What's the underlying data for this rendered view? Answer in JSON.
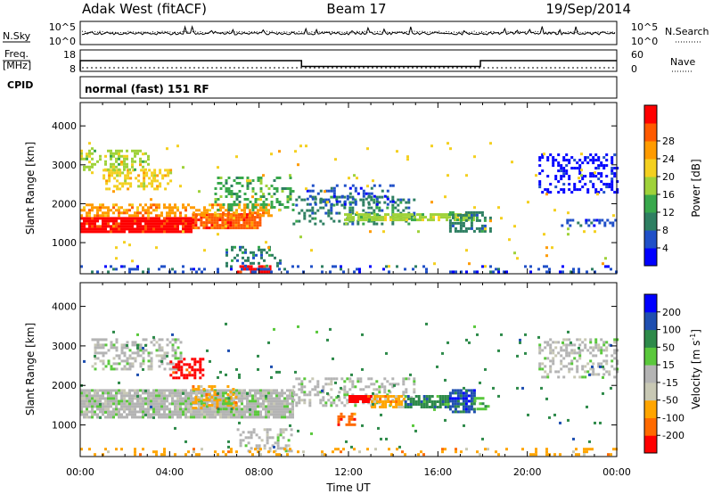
{
  "header": {
    "station": "Adak West (fitACF)",
    "beam": "Beam 17",
    "date": "19/Sep/2014"
  },
  "labels": {
    "nsky": "N.Sky",
    "nsearch": "N.Search",
    "freq_top": "Freq.",
    "freq_unit": "[MHz]",
    "cpid": "CPID",
    "nave": "Nave",
    "cpid_value": "normal (fast) 151 RF"
  },
  "colors": {
    "power": [
      "#0000ff",
      "#2050c8",
      "#2e7f62",
      "#38a84c",
      "#9fd23a",
      "#f4d020",
      "#ff9b00",
      "#ff5a00",
      "#ff0000"
    ],
    "velocity": [
      "#ff0000",
      "#ff6a00",
      "#ffa500",
      "#c8c8b4",
      "#b4b4b4",
      "#5ac83c",
      "#2e8a4a",
      "#1f4fb0",
      "#0000ff"
    ]
  },
  "chart_data": [
    {
      "type": "line",
      "name": "noise",
      "ylabel_left": "N.Sky",
      "ylabel_right": "N.Search",
      "left_ticks": [
        "10^5",
        "10^0"
      ],
      "right_ticks": [
        "10^5",
        "10^0"
      ],
      "xlim": [
        0,
        24
      ]
    },
    {
      "type": "line",
      "name": "frequency",
      "left_ticks": [
        "18",
        "8"
      ],
      "right_ticks": [
        "60",
        "0"
      ],
      "ylim_left": [
        8,
        18
      ],
      "ylim_right": [
        0,
        60
      ],
      "freq_steps": [
        {
          "x0": 0,
          "x1": 9.9,
          "y": 13
        },
        {
          "x0": 9.9,
          "x1": 17.9,
          "y": 10.3
        },
        {
          "x0": 17.9,
          "x1": 24,
          "y": 13
        }
      ],
      "nave_level": 10,
      "xlim": [
        0,
        24
      ]
    },
    {
      "type": "heatmap",
      "name": "power",
      "ylabel": "Slant Range [km]",
      "yticks": [
        "1000",
        "2000",
        "3000",
        "4000"
      ],
      "ylim": [
        200,
        4600
      ],
      "xlim": [
        0,
        24
      ],
      "colorbar_label": "Power [dB]",
      "colorbar_ticks": [
        "4",
        "8",
        "12",
        "16",
        "20",
        "24",
        "28"
      ],
      "regions": [
        {
          "x0": 0.0,
          "x1": 5.0,
          "y0": 1250,
          "y1": 1650,
          "c": 8,
          "d": 0.95
        },
        {
          "x0": 5.0,
          "x1": 8.0,
          "y0": 1400,
          "y1": 1750,
          "c": 7,
          "d": 0.9
        },
        {
          "x0": 0.0,
          "x1": 8.5,
          "y0": 1700,
          "y1": 2000,
          "c": 6,
          "d": 0.55
        },
        {
          "x0": 1.0,
          "x1": 4.0,
          "y0": 2400,
          "y1": 2900,
          "c": 5,
          "d": 0.5
        },
        {
          "x0": 0.0,
          "x1": 3.0,
          "y0": 2900,
          "y1": 3400,
          "c": 4,
          "d": 0.35
        },
        {
          "x0": 6.0,
          "x1": 9.5,
          "y0": 1800,
          "y1": 2700,
          "c": 3,
          "d": 0.35
        },
        {
          "x0": 9.5,
          "x1": 15.0,
          "y0": 1500,
          "y1": 2200,
          "c": 2,
          "d": 0.35
        },
        {
          "x0": 10.0,
          "x1": 14.0,
          "y0": 2000,
          "y1": 2500,
          "c": 1,
          "d": 0.3
        },
        {
          "x0": 11.8,
          "x1": 17.6,
          "y0": 1550,
          "y1": 1750,
          "c": 4,
          "d": 0.8
        },
        {
          "x0": 16.5,
          "x1": 18.3,
          "y0": 1300,
          "y1": 1800,
          "c": 2,
          "d": 0.5
        },
        {
          "x0": 20.5,
          "x1": 24.0,
          "y0": 2300,
          "y1": 3300,
          "c": 0,
          "d": 0.35
        },
        {
          "x0": 21.5,
          "x1": 24.0,
          "y0": 1400,
          "y1": 1600,
          "c": 1,
          "d": 0.35
        },
        {
          "x0": 7.0,
          "x1": 8.5,
          "y0": 250,
          "y1": 400,
          "c": 8,
          "d": 0.7
        },
        {
          "x0": 6.5,
          "x1": 9.0,
          "y0": 400,
          "y1": 900,
          "c": 2,
          "d": 0.3
        },
        {
          "x0": 0.0,
          "x1": 24.0,
          "y0": 200,
          "y1": 400,
          "c": 1,
          "d": 0.2
        },
        {
          "x0": 0.0,
          "x1": 24.0,
          "y0": 400,
          "y1": 3600,
          "c": 5,
          "d": 0.015
        }
      ]
    },
    {
      "type": "heatmap",
      "name": "velocity",
      "ylabel": "Slant Range [km]",
      "yticks": [
        "1000",
        "2000",
        "3000",
        "4000"
      ],
      "ylim": [
        200,
        4600
      ],
      "xlim": [
        0,
        24
      ],
      "xticks": [
        "00:00",
        "04:00",
        "08:00",
        "12:00",
        "16:00",
        "20:00",
        "00:00"
      ],
      "xlabel": "Time UT",
      "colorbar_label": "Velocity [m s",
      "colorbar_label_sup": "-1",
      "colorbar_label_end": "]",
      "colorbar_ticks": [
        "-200",
        "-100",
        "-50",
        "-15",
        "15",
        "50",
        "100",
        "200"
      ],
      "regions": [
        {
          "x0": 0.0,
          "x1": 9.5,
          "y0": 1200,
          "y1": 1900,
          "c": 4,
          "d": 0.9
        },
        {
          "x0": 0.5,
          "x1": 4.5,
          "y0": 2400,
          "y1": 3200,
          "c": 4,
          "d": 0.45
        },
        {
          "x0": 4.0,
          "x1": 5.5,
          "y0": 2200,
          "y1": 2700,
          "c": 0,
          "d": 0.5
        },
        {
          "x0": 5.0,
          "x1": 7.0,
          "y0": 1400,
          "y1": 2000,
          "c": 2,
          "d": 0.35
        },
        {
          "x0": 6.0,
          "x1": 6.8,
          "y0": 1300,
          "y1": 1700,
          "c": 5,
          "d": 0.5
        },
        {
          "x0": 9.5,
          "x1": 15.0,
          "y0": 1500,
          "y1": 2200,
          "c": 4,
          "d": 0.35
        },
        {
          "x0": 11.5,
          "x1": 12.3,
          "y0": 1000,
          "y1": 1300,
          "c": 1,
          "d": 0.7
        },
        {
          "x0": 12.0,
          "x1": 13.0,
          "y0": 1550,
          "y1": 1750,
          "c": 0,
          "d": 0.85
        },
        {
          "x0": 13.0,
          "x1": 14.5,
          "y0": 1450,
          "y1": 1750,
          "c": 2,
          "d": 0.8
        },
        {
          "x0": 14.5,
          "x1": 16.5,
          "y0": 1450,
          "y1": 1750,
          "c": 6,
          "d": 0.8
        },
        {
          "x0": 16.5,
          "x1": 17.6,
          "y0": 1300,
          "y1": 1900,
          "c": 7,
          "d": 0.7
        },
        {
          "x0": 17.6,
          "x1": 18.3,
          "y0": 1400,
          "y1": 1700,
          "c": 5,
          "d": 0.5
        },
        {
          "x0": 20.5,
          "x1": 24.0,
          "y0": 2200,
          "y1": 3200,
          "c": 4,
          "d": 0.4
        },
        {
          "x0": 7.0,
          "x1": 9.5,
          "y0": 300,
          "y1": 900,
          "c": 4,
          "d": 0.35
        },
        {
          "x0": 0.0,
          "x1": 24.0,
          "y0": 200,
          "y1": 400,
          "c": 2,
          "d": 0.2
        },
        {
          "x0": 0.0,
          "x1": 24.0,
          "y0": 400,
          "y1": 3600,
          "c": 6,
          "d": 0.015
        }
      ]
    }
  ]
}
